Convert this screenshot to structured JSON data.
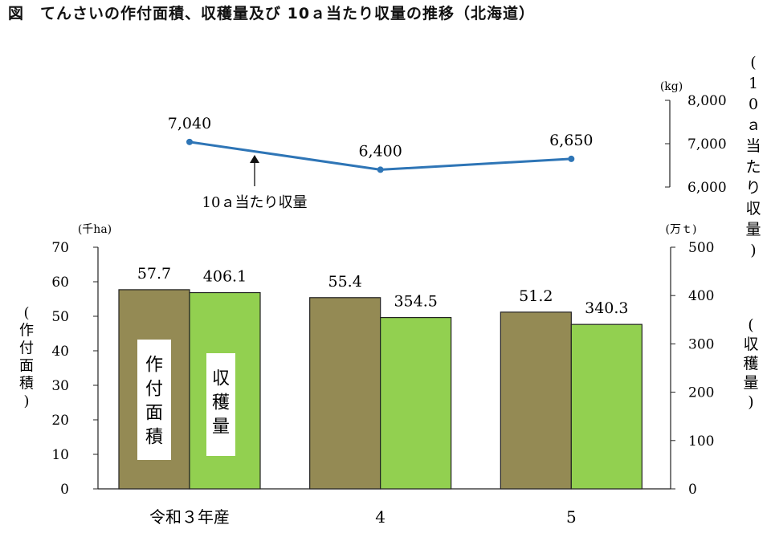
{
  "title": "図　てんさいの作付面積、収穫量及び 10ａ当たり収量の推移（北海道）",
  "chart_data": [
    {
      "type": "line",
      "categories": [
        "令和３年産",
        "4",
        "5"
      ],
      "series": [
        {
          "name": "10ａ当たり収量",
          "values": [
            7040,
            6400,
            6650
          ],
          "labels": [
            "7,040",
            "6,400",
            "6,650"
          ],
          "color": "#2E75B6"
        }
      ],
      "ylabel": "10ａ当たり収量",
      "yunit": "(kg)",
      "ylim": [
        6000,
        8000
      ],
      "yticks": [
        "6,000",
        "7,000",
        "8,000"
      ],
      "annotation": "10ａ当たり収量",
      "grid": false
    },
    {
      "type": "bar",
      "categories": [
        "令和３年産",
        "4",
        "5"
      ],
      "series": [
        {
          "name": "作付面積",
          "axis": "left",
          "values": [
            57.7,
            55.4,
            51.2
          ],
          "labels": [
            "57.7",
            "55.4",
            "51.2"
          ],
          "color": "#948A54"
        },
        {
          "name": "収穫量",
          "axis": "right",
          "values": [
            406.1,
            354.5,
            340.3
          ],
          "labels": [
            "406.1",
            "354.5",
            "340.3"
          ],
          "color": "#92D050"
        }
      ],
      "ylabel_left": "作付面積",
      "yunit_left": "(千ha)",
      "ylim_left": [
        0,
        70
      ],
      "yticks_left": [
        "0",
        "10",
        "20",
        "30",
        "40",
        "50",
        "60",
        "70"
      ],
      "ylabel_right": "収穫量",
      "yunit_right": "(万ｔ)",
      "ylim_right": [
        0,
        500
      ],
      "yticks_right": [
        "0",
        "100",
        "200",
        "300",
        "400",
        "500"
      ],
      "grid": false
    }
  ]
}
